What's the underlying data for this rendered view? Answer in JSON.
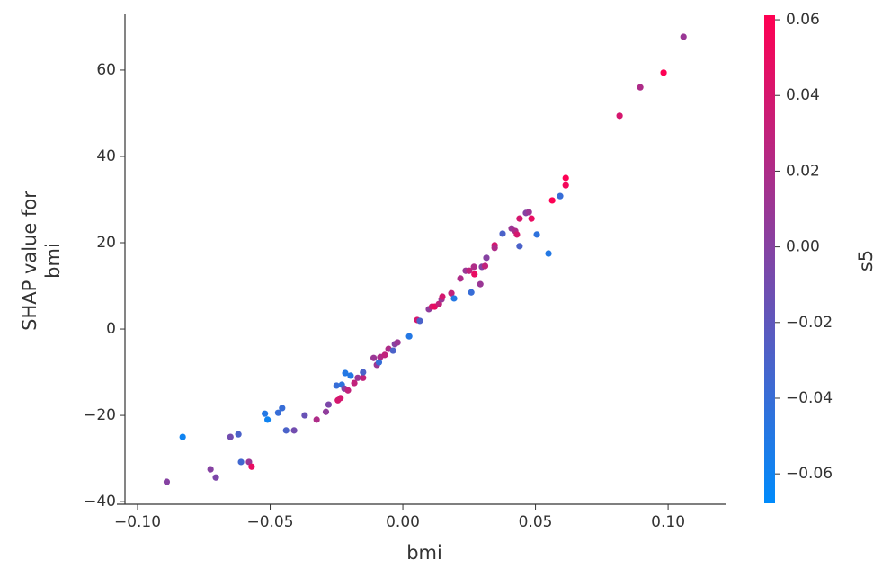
{
  "chart_data": {
    "type": "scatter",
    "xlabel": "bmi",
    "ylabel": [
      "SHAP value for",
      "bmi"
    ],
    "xlim": [
      -0.1078,
      0.122
    ],
    "ylim": [
      -40.6,
      72.9
    ],
    "xticks": [
      {
        "value": -0.1,
        "label": "−0.10"
      },
      {
        "value": -0.05,
        "label": "−0.05"
      },
      {
        "value": 0,
        "label": "0.00"
      },
      {
        "value": 0.05,
        "label": "0.05"
      },
      {
        "value": 0.1,
        "label": "0.10"
      }
    ],
    "yticks": [
      {
        "value": -40,
        "label": "−40"
      },
      {
        "value": -20,
        "label": "−20"
      },
      0,
      20,
      40,
      60
    ],
    "x": [
      -0.089,
      -0.083,
      -0.0725,
      -0.0705,
      -0.065,
      -0.062,
      -0.061,
      -0.058,
      -0.057,
      -0.052,
      -0.051,
      -0.047,
      -0.0455,
      -0.044,
      -0.041,
      -0.037,
      -0.0325,
      -0.029,
      -0.028,
      -0.025,
      -0.0245,
      -0.0235,
      -0.023,
      -0.022,
      -0.0217,
      -0.0207,
      -0.0197,
      -0.0183,
      -0.017,
      -0.015,
      -0.015,
      -0.011,
      -0.0098,
      -0.009,
      -0.0085,
      -0.0068,
      -0.0054,
      -0.0037,
      -0.003,
      -0.002,
      0.0024,
      0.0054,
      0.0064,
      0.0098,
      0.011,
      0.012,
      0.0136,
      0.0146,
      0.0149,
      0.0183,
      0.0193,
      0.0217,
      0.0237,
      0.025,
      0.0258,
      0.0268,
      0.027,
      0.0292,
      0.0298,
      0.031,
      0.0315,
      0.0346,
      0.0346,
      0.0376,
      0.041,
      0.0424,
      0.043,
      0.044,
      0.044,
      0.0464,
      0.0475,
      0.0485,
      0.0505,
      0.0549,
      0.0563,
      0.0593,
      0.0614,
      0.0614,
      0.0817,
      0.0895,
      0.0983,
      0.1058
    ],
    "y": [
      -35.4,
      -25.0,
      -32.5,
      -34.4,
      -25.0,
      -24.4,
      -30.8,
      -30.8,
      -31.9,
      -19.6,
      -21.0,
      -19.4,
      -18.3,
      -23.5,
      -23.5,
      -20.0,
      -21.0,
      -19.2,
      -17.5,
      -13.1,
      -16.5,
      -16.0,
      -12.9,
      -13.8,
      -10.2,
      -14.2,
      -10.8,
      -12.5,
      -11.3,
      -11.3,
      -10.0,
      -6.7,
      -8.3,
      -7.7,
      -6.5,
      -6.0,
      -4.6,
      -5.0,
      -3.5,
      -3.1,
      -1.7,
      2.1,
      1.9,
      4.6,
      5.2,
      5.2,
      5.8,
      6.9,
      7.5,
      8.3,
      7.1,
      11.7,
      13.5,
      13.5,
      8.5,
      14.4,
      12.7,
      10.4,
      14.4,
      14.6,
      16.5,
      19.4,
      18.8,
      22.1,
      23.3,
      22.7,
      21.9,
      19.2,
      25.6,
      26.9,
      27.1,
      25.6,
      21.9,
      17.5,
      29.8,
      30.8,
      35.0,
      33.3,
      49.4,
      56.0,
      59.4,
      67.7
    ],
    "color_values": [
      0.0,
      -0.06,
      0.0,
      -0.005,
      -0.01,
      -0.03,
      -0.035,
      0.01,
      0.05,
      -0.05,
      -0.06,
      -0.04,
      -0.04,
      -0.03,
      -0.01,
      -0.015,
      0.02,
      0.005,
      -0.005,
      -0.04,
      0.04,
      0.04,
      -0.045,
      0.0,
      -0.05,
      0.03,
      -0.05,
      0.03,
      0.01,
      0.03,
      -0.03,
      0.01,
      0.01,
      -0.04,
      0.02,
      0.03,
      0.02,
      -0.03,
      0.0,
      0.01,
      -0.05,
      0.04,
      -0.03,
      0.005,
      0.04,
      0.05,
      0.03,
      0.01,
      0.04,
      0.03,
      -0.05,
      0.02,
      0.01,
      0.03,
      -0.04,
      0.02,
      0.05,
      0.01,
      0.0,
      0.03,
      0.0,
      0.04,
      0.02,
      -0.03,
      0.01,
      0.02,
      0.04,
      -0.03,
      0.04,
      0.0,
      0.01,
      0.05,
      -0.045,
      -0.05,
      0.06,
      -0.04,
      0.06,
      0.055,
      0.04,
      0.02,
      0.06,
      0.01
    ],
    "colormap": [
      "#008bfb",
      "#ff0052"
    ],
    "colorbar": {
      "label": "s5",
      "lim": [
        -0.0678,
        0.0612
      ],
      "ticks": [
        {
          "value": -0.06,
          "label": "−0.06"
        },
        {
          "value": -0.04,
          "label": "−0.04"
        },
        {
          "value": -0.02,
          "label": "−0.02"
        },
        {
          "value": 0,
          "label": "0.00"
        },
        {
          "value": 0.02,
          "label": "0.02"
        },
        {
          "value": 0.04,
          "label": "0.04"
        },
        {
          "value": 0.06,
          "label": "0.06"
        }
      ]
    }
  }
}
